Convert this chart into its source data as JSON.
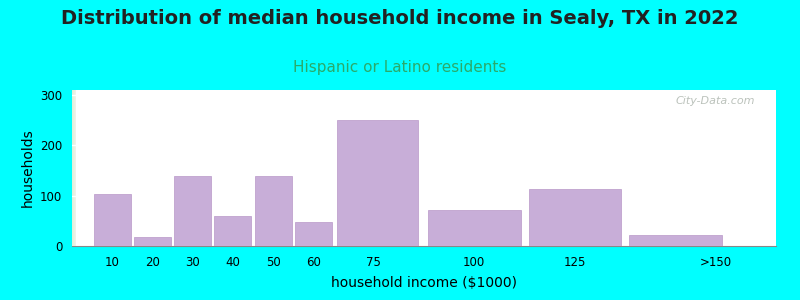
{
  "title": "Distribution of median household income in Sealy, TX in 2022",
  "subtitle": "Hispanic or Latino residents",
  "xlabel": "household income ($1000)",
  "ylabel": "households",
  "background_color": "#00FFFF",
  "bar_color": "#c8aed8",
  "bar_edge_color": "#b898c8",
  "categories": [
    "10",
    "20",
    "30",
    "40",
    "50",
    "60",
    "75",
    "100",
    "125",
    ">150"
  ],
  "values": [
    103,
    17,
    140,
    60,
    140,
    47,
    250,
    72,
    113,
    22
  ],
  "bar_lefts": [
    5,
    15,
    25,
    35,
    45,
    55,
    65,
    87.5,
    112.5,
    137.5
  ],
  "bar_widths": [
    10,
    10,
    10,
    10,
    10,
    10,
    22,
    25,
    25,
    25
  ],
  "bar_gaps": [
    0,
    0,
    0,
    0,
    0,
    0,
    0,
    0,
    0,
    0
  ],
  "xtick_positions": [
    10,
    20,
    30,
    40,
    50,
    60,
    75,
    100,
    125,
    160
  ],
  "xtick_labels": [
    "10",
    "20",
    "30",
    "40",
    "50",
    "60",
    "75",
    "100",
    "125",
    ">150"
  ],
  "xlim": [
    0,
    175
  ],
  "ylim": [
    0,
    310
  ],
  "yticks": [
    0,
    100,
    200,
    300
  ],
  "title_fontsize": 14,
  "subtitle_fontsize": 11,
  "subtitle_color": "#2aaa6a",
  "axis_label_fontsize": 10,
  "watermark_text": "City-Data.com",
  "watermark_color": "#b0b8b0"
}
